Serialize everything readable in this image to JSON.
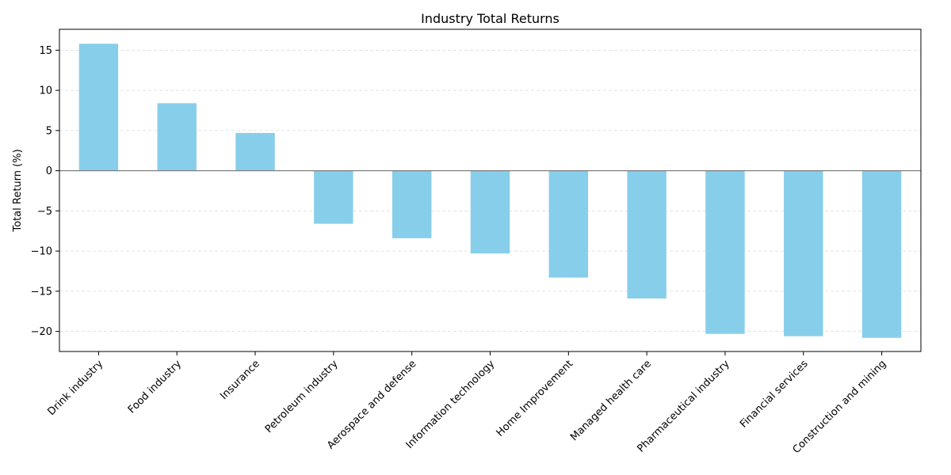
{
  "chart_data": {
    "type": "bar",
    "title": "Industry Total Returns",
    "xlabel": "",
    "ylabel": "Total Return (%)",
    "categories": [
      "Drink industry",
      "Food industry",
      "Insurance",
      "Petroleum industry",
      "Aerospace and defense",
      "Information technology",
      "Home Improvement",
      "Managed health care",
      "Pharmaceutical industry",
      "Financial services",
      "Construction and mining"
    ],
    "values": [
      15.8,
      8.4,
      4.7,
      -6.6,
      -8.4,
      -10.3,
      -13.3,
      -15.9,
      -20.3,
      -20.6,
      -20.8
    ],
    "ylim": [
      -22.5,
      17.6
    ],
    "yticks": [
      -20,
      -15,
      -10,
      -5,
      0,
      5,
      10,
      15
    ],
    "ytick_labels": [
      "−20",
      "−15",
      "−10",
      "−5",
      "0",
      "5",
      "10",
      "15"
    ],
    "grid": "y-dashed",
    "bar_color": "#87ceeb",
    "zero_line_color": "#808080"
  }
}
